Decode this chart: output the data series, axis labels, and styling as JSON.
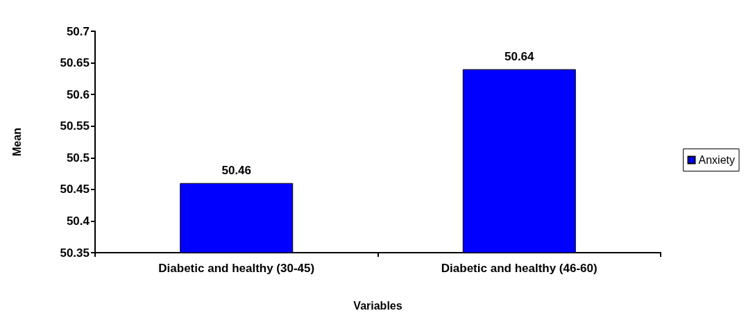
{
  "chart_data": {
    "type": "bar",
    "xlabel": "Variables",
    "ylabel": "Mean",
    "categories": [
      "Diabetic and healthy (30-45)",
      "Diabetic and healthy (46-60)"
    ],
    "series": [
      {
        "name": "Anxiety",
        "color": "#0000ff",
        "values": [
          50.46,
          50.64
        ]
      }
    ],
    "ylim": [
      50.35,
      50.7
    ],
    "yticks": [
      50.35,
      50.4,
      50.45,
      50.5,
      50.55,
      50.6,
      50.65,
      50.7
    ],
    "grid": false,
    "legend": "right",
    "data_labels": true
  }
}
